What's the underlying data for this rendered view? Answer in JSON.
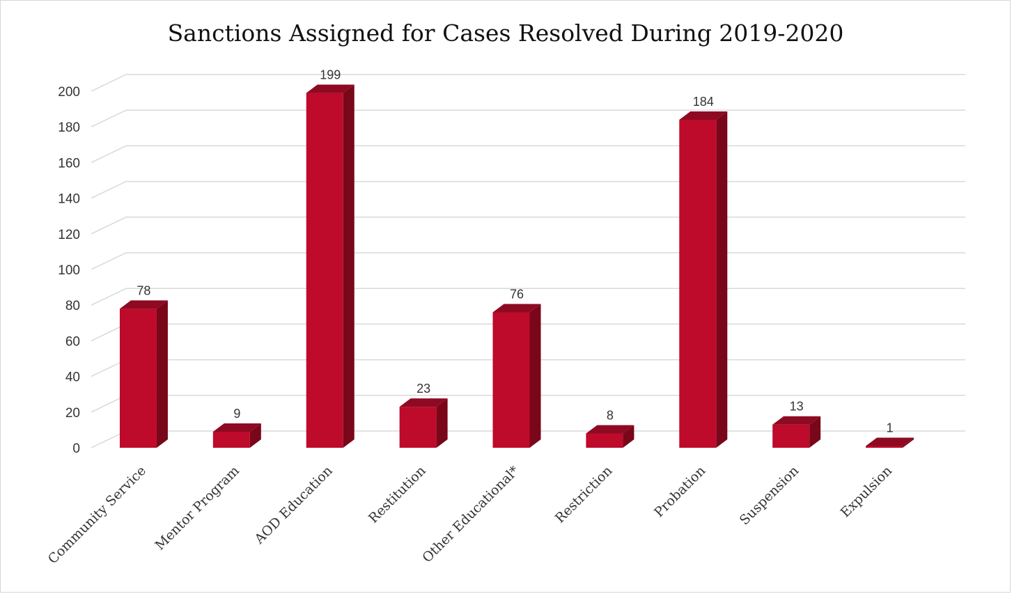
{
  "chart_data": {
    "type": "bar",
    "title": "Sanctions Assigned for Cases Resolved During 2019-2020",
    "categories": [
      "Community Service",
      "Mentor Program",
      "AOD Education",
      "Restitution",
      "Other Educational*",
      "Restriction",
      "Probation",
      "Suspension",
      "Expulsion"
    ],
    "values": [
      78,
      9,
      199,
      23,
      76,
      8,
      184,
      13,
      1
    ],
    "yticks": [
      0,
      20,
      40,
      60,
      80,
      100,
      120,
      140,
      160,
      180,
      200
    ],
    "ylim": [
      0,
      200
    ],
    "grid": true,
    "legend": "none",
    "colors": {
      "bar_front": "#BE0A2B",
      "bar_top": "#8E0A22",
      "bar_side": "#7A0619",
      "grid": "#d9d9d9"
    }
  }
}
